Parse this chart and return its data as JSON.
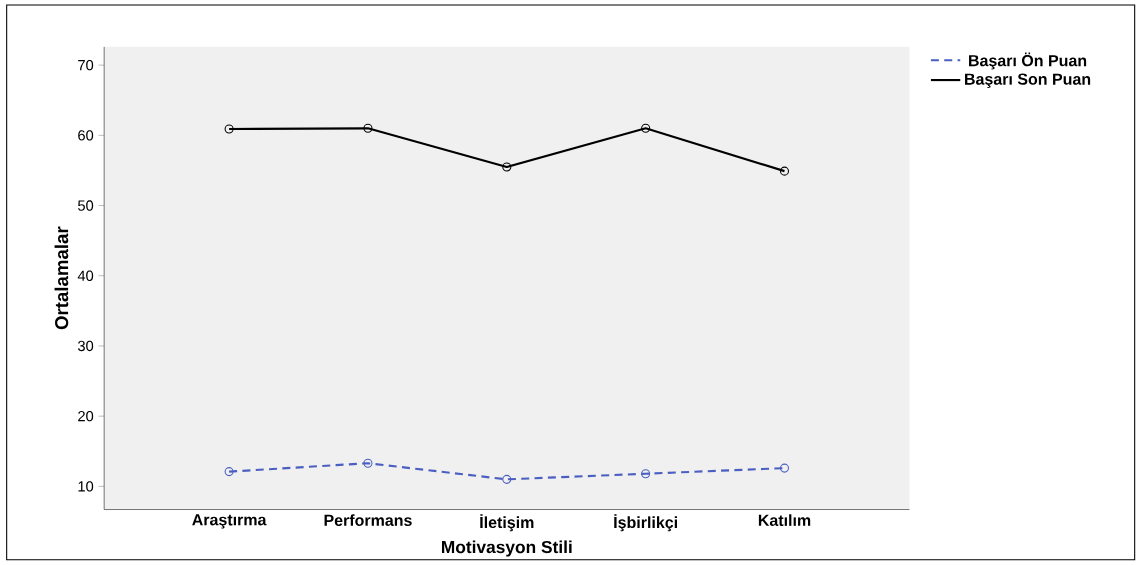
{
  "chart_data": {
    "type": "line",
    "xlabel": "Motivasyon Stili",
    "ylabel": "Ortalamalar",
    "categories": [
      "Araştırma",
      "Performans",
      "İletişim",
      "İşbirlikçi",
      "Katılım"
    ],
    "series": [
      {
        "name": "Başarı Ön Puan",
        "color": "#4a5fc1",
        "line_style": "dashed",
        "values": [
          12.1,
          13.3,
          11.0,
          11.8,
          12.6
        ]
      },
      {
        "name": "Başarı Son Puan",
        "color": "#000000",
        "line_style": "solid",
        "values": [
          60.9,
          61.0,
          55.5,
          61.0,
          54.9
        ]
      }
    ],
    "ylim": [
      6.7,
      72.6
    ],
    "yticks": [
      10,
      20,
      30,
      40,
      50,
      60,
      70
    ],
    "marker": "circle",
    "legend": "top right",
    "grid": false
  }
}
